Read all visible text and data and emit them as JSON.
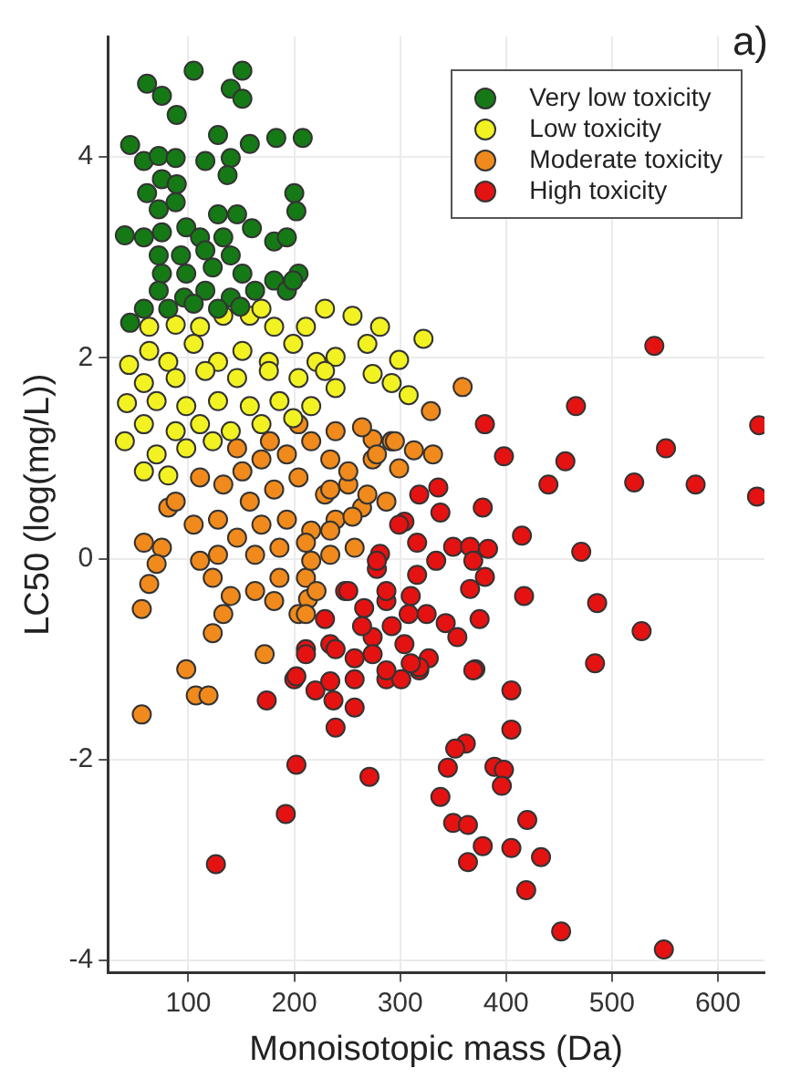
{
  "chart_data": {
    "type": "scatter",
    "title": "a)",
    "xlabel": "Monoisotopic mass (Da)",
    "ylabel": "LC50 (log(mg/L))",
    "xlim": [
      24,
      644
    ],
    "xticks": [
      100,
      200,
      300,
      400,
      500,
      600
    ],
    "ylim": [
      -4.12,
      5.2
    ],
    "yticks": [
      -4,
      -2,
      0,
      2,
      4
    ],
    "grid": true,
    "legend": "top right",
    "marker": "circle",
    "series": [
      {
        "name": "Very low toxicity",
        "color": "#157a15",
        "x": [
          105,
          61,
          75,
          89,
          151,
          140,
          151,
          45,
          128,
          183,
          158,
          200,
          58,
          72,
          88,
          116,
          140,
          75,
          89,
          137,
          61,
          72,
          88,
          128,
          146,
          40,
          58,
          75,
          98,
          111,
          133,
          160,
          181,
          193,
          72,
          93,
          116,
          140,
          75,
          98,
          123,
          151,
          181,
          204,
          72,
          96,
          116,
          140,
          163,
          193,
          58,
          81,
          105,
          128,
          149,
          45,
          202,
          208,
          199
        ],
        "values": [
          4.86,
          4.73,
          4.61,
          4.42,
          4.86,
          4.68,
          4.58,
          4.12,
          4.22,
          4.19,
          4.13,
          3.64,
          3.96,
          4.01,
          3.99,
          3.96,
          3.99,
          3.78,
          3.73,
          3.82,
          3.64,
          3.48,
          3.55,
          3.43,
          3.43,
          3.22,
          3.2,
          3.25,
          3.3,
          3.2,
          3.2,
          3.29,
          3.16,
          3.2,
          3.02,
          3.02,
          3.07,
          3.02,
          2.84,
          2.84,
          2.9,
          2.84,
          2.77,
          2.84,
          2.67,
          2.6,
          2.67,
          2.6,
          2.67,
          2.67,
          2.49,
          2.49,
          2.54,
          2.49,
          2.51,
          2.35,
          3.46,
          4.19,
          2.77
        ]
      },
      {
        "name": "Low toxicity",
        "color": "#f2f222",
        "x": [
          63,
          88,
          111,
          133,
          158,
          169,
          181,
          211,
          229,
          255,
          281,
          269,
          299,
          322,
          44,
          63,
          81,
          105,
          128,
          151,
          176,
          199,
          221,
          239,
          42,
          58,
          88,
          116,
          146,
          176,
          204,
          229,
          274,
          292,
          308,
          70,
          98,
          128,
          158,
          186,
          216,
          239,
          58,
          88,
          111,
          140,
          169,
          199,
          58,
          81,
          70,
          98,
          123,
          40
        ],
        "values": [
          2.31,
          2.33,
          2.31,
          2.42,
          2.42,
          2.49,
          2.31,
          2.31,
          2.49,
          2.42,
          2.31,
          2.14,
          1.98,
          2.19,
          1.93,
          2.07,
          1.96,
          2.14,
          1.96,
          2.07,
          1.96,
          2.14,
          1.96,
          2.01,
          1.55,
          1.75,
          1.8,
          1.87,
          1.8,
          1.87,
          1.8,
          1.87,
          1.84,
          1.75,
          1.63,
          1.57,
          1.52,
          1.57,
          1.52,
          1.57,
          1.52,
          1.7,
          1.34,
          1.27,
          1.34,
          1.27,
          1.34,
          1.4,
          0.87,
          0.83,
          1.04,
          1.1,
          1.17,
          1.17
        ]
      },
      {
        "name": "Moderate toxicity",
        "color": "#f08a1c",
        "x": [
          56,
          107,
          119,
          56,
          98,
          172,
          123,
          359,
          329,
          292,
          146,
          169,
          193,
          216,
          239,
          234,
          111,
          133,
          158,
          181,
          204,
          229,
          251,
          274,
          292,
          81,
          105,
          128,
          146,
          169,
          193,
          216,
          239,
          264,
          287,
          58,
          75,
          111,
          128,
          163,
          186,
          211,
          234,
          257,
          70,
          123,
          163,
          186,
          211,
          63,
          140,
          133,
          181,
          204,
          213,
          88,
          151,
          177,
          204,
          274,
          264,
          278,
          313,
          331,
          299,
          251,
          234,
          269,
          255,
          234,
          216,
          221,
          211,
          295
        ],
        "values": [
          -1.55,
          -1.36,
          -1.36,
          -0.5,
          -1.1,
          -0.95,
          -0.74,
          1.71,
          1.47,
          1.17,
          1.1,
          0.99,
          1.04,
          1.17,
          1.27,
          0.99,
          0.81,
          0.74,
          0.57,
          0.69,
          0.81,
          0.64,
          0.74,
          0.99,
          1.17,
          0.51,
          0.34,
          0.39,
          0.21,
          0.34,
          0.39,
          0.28,
          0.39,
          0.51,
          0.57,
          0.16,
          0.11,
          -0.02,
          0.04,
          0.04,
          0.11,
          0.16,
          0.04,
          0.11,
          -0.05,
          -0.19,
          -0.32,
          -0.19,
          -0.19,
          -0.25,
          -0.37,
          -0.55,
          -0.42,
          -0.55,
          -0.4,
          0.57,
          0.87,
          1.17,
          1.34,
          1.19,
          1.31,
          1.04,
          1.08,
          1.04,
          0.9,
          0.87,
          0.69,
          0.64,
          0.42,
          0.28,
          -0.02,
          -0.32,
          -0.55,
          1.17
        ]
      },
      {
        "name": "High toxicity",
        "color": "#e51212",
        "x": [
          466,
          380,
          398,
          456,
          440,
          521,
          551,
          579,
          639,
          637,
          378,
          415,
          471,
          417,
          486,
          528,
          484,
          371,
          540,
          174,
          200,
          220,
          234,
          237,
          239,
          257,
          257,
          287,
          301,
          318,
          369,
          405,
          405,
          362,
          352,
          345,
          338,
          350,
          364,
          364,
          378,
          389,
          398,
          396,
          420,
          405,
          433,
          419,
          452,
          549,
          202,
          192,
          271,
          126,
          336,
          318,
          338,
          304,
          281,
          316,
          350,
          366,
          383,
          369,
          380,
          366,
          278,
          316,
          334,
          248,
          266,
          287,
          310,
          325,
          343,
          354,
          375,
          292,
          274,
          234,
          211,
          257,
          304,
          327,
          287,
          318,
          299,
          278,
          287,
          308,
          251,
          229,
          264,
          211,
          239,
          274,
          310,
          202
        ],
        "values": [
          1.52,
          1.34,
          1.02,
          0.97,
          0.74,
          0.76,
          1.1,
          0.74,
          1.33,
          0.62,
          0.51,
          0.23,
          0.07,
          -0.37,
          -0.44,
          -0.72,
          -1.04,
          -1.1,
          2.12,
          -1.41,
          -1.2,
          -1.31,
          -1.22,
          -1.41,
          -1.68,
          -1.48,
          -1.2,
          -1.2,
          -1.2,
          -1.11,
          -1.11,
          -1.31,
          -1.7,
          -1.84,
          -1.89,
          -2.08,
          -2.37,
          -2.63,
          -2.65,
          -3.02,
          -2.86,
          -2.07,
          -2.1,
          -2.26,
          -2.6,
          -2.88,
          -2.97,
          -3.3,
          -3.71,
          -3.89,
          -2.05,
          -2.54,
          -2.17,
          -3.04,
          0.71,
          0.64,
          0.46,
          0.37,
          0.05,
          0.16,
          0.12,
          0.12,
          0.1,
          -0.02,
          -0.18,
          -0.3,
          -0.1,
          -0.16,
          -0.02,
          -0.32,
          -0.49,
          -0.42,
          -0.37,
          -0.55,
          -0.64,
          -0.78,
          -0.6,
          -0.67,
          -0.78,
          -0.85,
          -0.9,
          -0.99,
          -0.85,
          -0.99,
          -1.11,
          -1.08,
          0.34,
          -0.02,
          -0.32,
          -0.55,
          -0.32,
          -0.6,
          -0.67,
          -0.95,
          -0.9,
          -0.95,
          -1.04,
          -1.17
        ]
      }
    ]
  }
}
